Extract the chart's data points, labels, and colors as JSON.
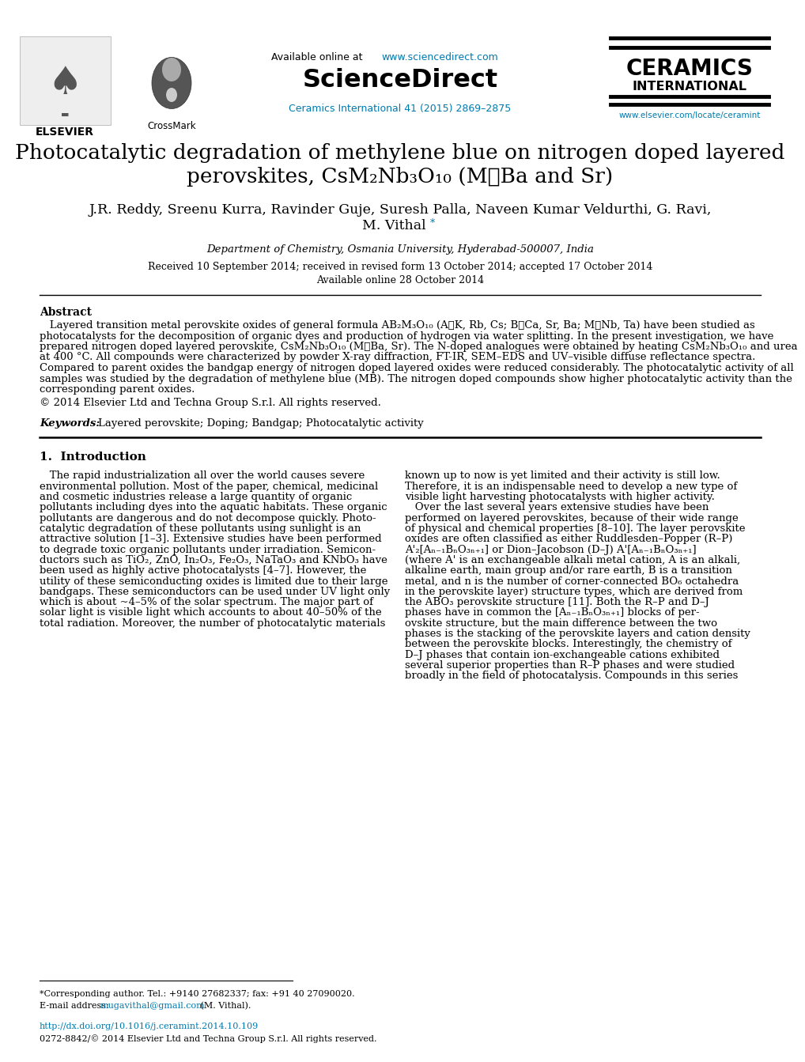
{
  "bg_color": "#ffffff",
  "link_color": "#007aad",
  "header": {
    "available_text": "Available online at ",
    "available_url": "www.sciencedirect.com",
    "sciencedirect_text": "ScienceDirect",
    "journal_text": "Ceramics International 41 (2015) 2869–2875",
    "ceramics_title": "CERAMICS",
    "ceramics_subtitle": "INTERNATIONAL",
    "elsevier_text": "ELSEVIER",
    "crossmark_text": "CrossMark",
    "url_text": "www.elsevier.com/locate/ceramint"
  },
  "title": {
    "line1": "Photocatalytic degradation of methylene blue on nitrogen doped layered",
    "line2": "perovskites, CsM₂Nb₃O₁₀ (M＝Ba and Sr)",
    "fontsize": 19
  },
  "authors": {
    "line1": "J.R. Reddy, Sreenu Kurra, Ravinder Guje, Suresh Palla, Naveen Kumar Veldurthi, G. Ravi,",
    "line2": "M. Vithal",
    "fontsize": 12.5
  },
  "affiliation": {
    "text": "Department of Chemistry, Osmania University, Hyderabad-500007, India",
    "fontsize": 9.5
  },
  "dates": {
    "line1": "Received 10 September 2014; received in revised form 13 October 2014; accepted 17 October 2014",
    "line2": "Available online 28 October 2014",
    "fontsize": 9
  },
  "abstract": {
    "title": "Abstract",
    "body_lines": [
      "   Layered transition metal perovskite oxides of general formula AB₂M₃O₁₀ (A＝K, Rb, Cs; B＝Ca, Sr, Ba; M＝Nb, Ta) have been studied as",
      "photocatalysts for the decomposition of organic dyes and production of hydrogen via water splitting. In the present investigation, we have",
      "prepared nitrogen doped layered perovskite, CsM₂Nb₃O₁₀ (M＝Ba, Sr). The N-doped analogues were obtained by heating CsM₂Nb₃O₁₀ and urea",
      "at 400 °C. All compounds were characterized by powder X-ray diffraction, FT-IR, SEM–EDS and UV–visible diffuse reflectance spectra.",
      "Compared to parent oxides the bandgap energy of nitrogen doped layered oxides were reduced considerably. The photocatalytic activity of all",
      "samples was studied by the degradation of methylene blue (MB). The nitrogen doped compounds show higher photocatalytic activity than the",
      "corresponding parent oxides."
    ],
    "copyright": "© 2014 Elsevier Ltd and Techna Group S.r.l. All rights reserved.",
    "keywords_label": "Keywords:",
    "keywords_text": "Layered perovskite; Doping; Bandgap; Photocatalytic activity",
    "fontsize": 9.5,
    "title_fontsize": 10
  },
  "intro": {
    "title": "1.  Introduction",
    "left_lines": [
      "   The rapid industrialization all over the world causes severe",
      "environmental pollution. Most of the paper, chemical, medicinal",
      "and cosmetic industries release a large quantity of organic",
      "pollutants including dyes into the aquatic habitats. These organic",
      "pollutants are dangerous and do not decompose quickly. Photo-",
      "catalytic degradation of these pollutants using sunlight is an",
      "attractive solution [1–3]. Extensive studies have been performed",
      "to degrade toxic organic pollutants under irradiation. Semicon-",
      "ductors such as TiO₂, ZnO, In₂O₃, Fe₂O₃, NaTaO₃ and KNbO₃ have",
      "been used as highly active photocatalysts [4–7]. However, the",
      "utility of these semiconducting oxides is limited due to their large",
      "bandgaps. These semiconductors can be used under UV light only",
      "which is about ~4–5% of the solar spectrum. The major part of",
      "solar light is visible light which accounts to about 40–50% of the",
      "total radiation. Moreover, the number of photocatalytic materials"
    ],
    "right_lines": [
      "known up to now is yet limited and their activity is still low.",
      "Therefore, it is an indispensable need to develop a new type of",
      "visible light harvesting photocatalysts with higher activity.",
      "   Over the last several years extensive studies have been",
      "performed on layered perovskites, because of their wide range",
      "of physical and chemical properties [8–10]. The layer perovskite",
      "oxides are often classified as either Ruddlesden–Popper (R–P)",
      "A'₂[Aₙ₋₁BₙO₃ₙ₊₁] or Dion–Jacobson (D–J) A'[Aₙ₋₁BₙO₃ₙ₊₁]",
      "(where A' is an exchangeable alkali metal cation, A is an alkali,",
      "alkaline earth, main group and/or rare earth, B is a transition",
      "metal, and n is the number of corner-connected BO₆ octahedra",
      "in the perovskite layer) structure types, which are derived from",
      "the ABO₃ perovskite structure [11]. Both the R–P and D–J",
      "phases have in common the [Aₙ₋₁BₙO₃ₙ₊₁] blocks of per-",
      "ovskite structure, but the main difference between the two",
      "phases is the stacking of the perovskite layers and cation density",
      "between the perovskite blocks. Interestingly, the chemistry of",
      "D–J phases that contain ion-exchangeable cations exhibited",
      "several superior properties than R–P phases and were studied",
      "broadly in the field of photocatalysis. Compounds in this series"
    ],
    "fontsize": 9.5,
    "title_fontsize": 11
  },
  "footer": {
    "footnote_star": "*Corresponding author. Tel.: +9140 27682337; fax: +91 40 27090020.",
    "email_label": "E-mail address: ",
    "email": "mugavithal@gmail.com",
    "email_suffix": " (M. Vithal).",
    "doi": "http://dx.doi.org/10.1016/j.ceramint.2014.10.109",
    "issn": "0272-8842/© 2014 Elsevier Ltd and Techna Group S.r.l. All rights reserved.",
    "fontsize": 8
  }
}
